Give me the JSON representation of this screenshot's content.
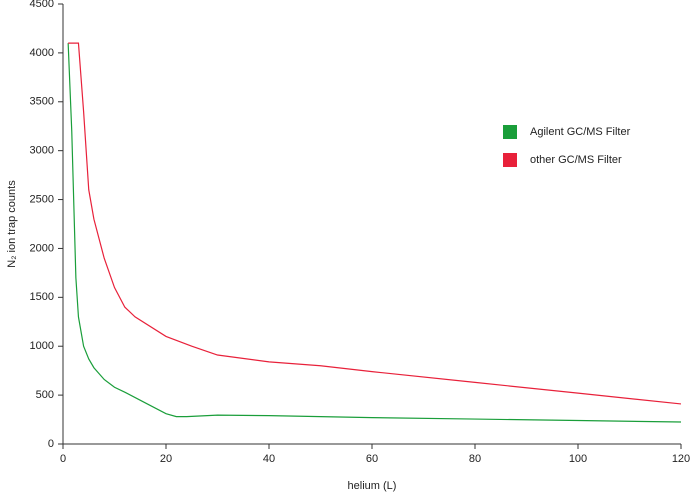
{
  "chart_data": {
    "type": "line",
    "xlabel": "helium (L)",
    "ylabel": "N₂ ion trap counts",
    "xlim": [
      0,
      120
    ],
    "xticks": [
      0,
      20,
      40,
      60,
      80,
      100,
      120
    ],
    "ylim": [
      0,
      4500
    ],
    "yticks": [
      0,
      500,
      1000,
      1500,
      2000,
      2500,
      3000,
      3500,
      4000,
      4500
    ],
    "legend": "right",
    "series": [
      {
        "name": "Agilent GC/MS Filter",
        "color": "#1a9e3a",
        "x": [
          1,
          1.7,
          2.5,
          3,
          4,
          5,
          6,
          8,
          10,
          12,
          16,
          20,
          22,
          24,
          30,
          40,
          60,
          80,
          100,
          120
        ],
        "values": [
          4100,
          3200,
          1700,
          1300,
          1000,
          870,
          780,
          660,
          580,
          530,
          420,
          310,
          280,
          280,
          295,
          290,
          270,
          255,
          240,
          225
        ]
      },
      {
        "name": "other GC/MS Filter",
        "color": "#e8213a",
        "x": [
          1,
          3,
          4,
          5,
          6,
          8,
          10,
          12,
          14,
          20,
          25,
          30,
          40,
          50,
          60,
          80,
          100,
          120
        ],
        "values": [
          4100,
          4100,
          3400,
          2600,
          2300,
          1900,
          1600,
          1400,
          1300,
          1100,
          1000,
          910,
          840,
          800,
          740,
          630,
          520,
          410
        ]
      }
    ]
  }
}
